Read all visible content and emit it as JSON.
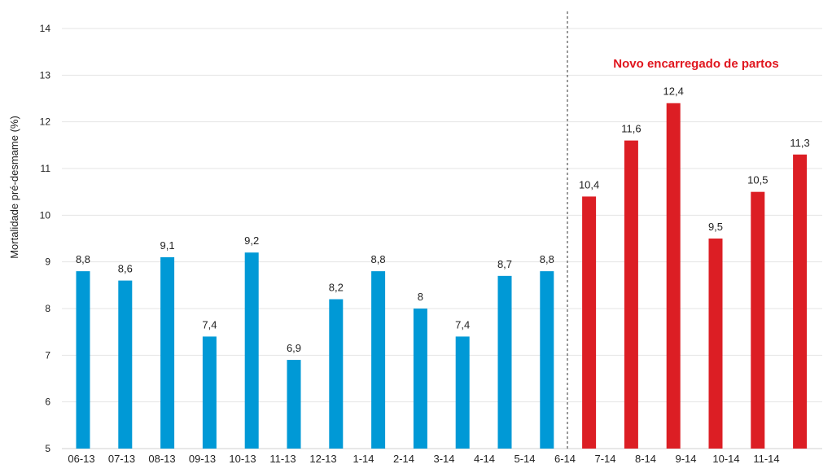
{
  "chart_data": {
    "type": "bar",
    "ylabel": "Mortalidade pré-desmame (%)",
    "ylim": [
      5,
      14
    ],
    "yticks": [
      5,
      6,
      7,
      8,
      9,
      10,
      11,
      12,
      13,
      14
    ],
    "grid": true,
    "categories": [
      "06-13",
      "07-13",
      "08-13",
      "09-13",
      "10-13",
      "11-13",
      "12-13",
      "1-14",
      "2-14",
      "3-14",
      "4-14",
      "5-14",
      "6-14",
      "7-14",
      "8-14",
      "9-14",
      "10-14",
      "11-14"
    ],
    "values": [
      8.8,
      8.6,
      9.1,
      7.4,
      9.2,
      6.9,
      8.2,
      8.8,
      8,
      7.4,
      8.7,
      8.8,
      10.4,
      11.6,
      12.4,
      9.5,
      10.5,
      11.3
    ],
    "data_labels": [
      "8,8",
      "8,6",
      "9,1",
      "7,4",
      "9,2",
      "6,9",
      "8,2",
      "8,8",
      "8",
      "7,4",
      "8,7",
      "8,8",
      "10,4",
      "11,6",
      "12,4",
      "9,5",
      "10,5",
      "11,3"
    ],
    "colors": {
      "before": "#0099D6",
      "after": "#DC1E24",
      "annotation": "#E0161E"
    },
    "annotation": "Novo encarregado de partos",
    "change_after_index": 11
  }
}
